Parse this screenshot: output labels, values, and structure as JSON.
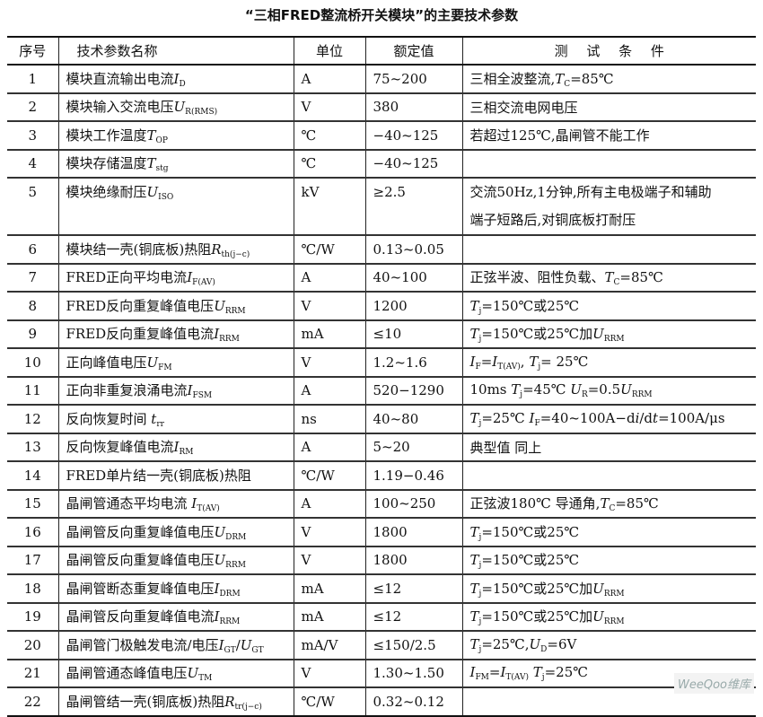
{
  "title": "“三相FRED整流桥开关模块”的主要技术参数",
  "headers": [
    "序号",
    "技术参数名称",
    "单位",
    "额定值",
    "测 试 条 件"
  ],
  "rows": [
    {
      "no": "1",
      "name": [
        "模块直流输出电流",
        {
          "i": "I"
        },
        {
          "s": "D"
        }
      ],
      "unit": "A",
      "value": "75~200",
      "cond": [
        "三相全波整流,",
        {
          "i": "T"
        },
        {
          "s": "C"
        },
        "=85℃"
      ]
    },
    {
      "no": "2",
      "name": [
        "模块输入交流电压",
        {
          "i": "U"
        },
        {
          "s": "R(RMS)"
        }
      ],
      "unit": "V",
      "value": "380",
      "cond": [
        "三相交流电网电压"
      ]
    },
    {
      "no": "3",
      "name": [
        "模块工作温度",
        {
          "i": "T"
        },
        {
          "s": "OP"
        }
      ],
      "unit": "℃",
      "value": "−40~125",
      "cond": [
        "若超过125℃,晶闸管不能工作"
      ]
    },
    {
      "no": "4",
      "name": [
        "模块存储温度",
        {
          "i": "T"
        },
        {
          "s": "stg"
        }
      ],
      "unit": "℃",
      "value": "−40~125",
      "cond": []
    },
    {
      "no": "5",
      "name": [
        "模块绝缘耐压",
        {
          "i": "U"
        },
        {
          "s": "ISO"
        }
      ],
      "unit": "kV",
      "value": "≥2.5",
      "cond": [
        "交流50Hz,1分钟,所有主电极端子和辅助",
        {
          "br": "端子短路后,对铜底板打耐压"
        }
      ]
    },
    {
      "no": "6",
      "name": [
        "模块结一壳(铜底板)热阻",
        {
          "i": "R"
        },
        {
          "s": "th(j−c)"
        }
      ],
      "unit": "℃/W",
      "value": "0.13~0.05",
      "cond": []
    },
    {
      "no": "7",
      "name": [
        "FRED正向平均电流",
        {
          "i": "I"
        },
        {
          "s": "F(AV)"
        }
      ],
      "unit": "A",
      "value": "40~100",
      "cond": [
        "正弦半波、阻性负载、",
        {
          "i": "T"
        },
        {
          "s": "C"
        },
        "=85℃"
      ]
    },
    {
      "no": "8",
      "name": [
        "FRED反向重复峰值电压",
        {
          "i": "U"
        },
        {
          "s": "RRM"
        }
      ],
      "unit": "V",
      "value": "1200",
      "cond": [
        {
          "i": "T"
        },
        {
          "s": "j"
        },
        "=150℃或25℃"
      ]
    },
    {
      "no": "9",
      "name": [
        "FRED反向重复峰值电流",
        {
          "i": "I"
        },
        {
          "s": "RRM"
        }
      ],
      "unit": "mA",
      "value": "≤10",
      "cond": [
        {
          "i": "T"
        },
        {
          "s": "j"
        },
        "=150℃或25℃加",
        {
          "i": "U"
        },
        {
          "s": "RRM"
        }
      ]
    },
    {
      "no": "10",
      "name": [
        "正向峰值电压",
        {
          "i": "U"
        },
        {
          "s": "FM"
        }
      ],
      "unit": "V",
      "value": "1.2~1.6",
      "cond": [
        {
          "i": "I"
        },
        {
          "s": "F"
        },
        "=",
        {
          "i": "I"
        },
        {
          "s": "T(AV)"
        },
        ", ",
        {
          "i": "T"
        },
        {
          "s": "j"
        },
        "= 25℃"
      ]
    },
    {
      "no": "11",
      "name": [
        "正向非重复浪涌电流",
        {
          "i": "I"
        },
        {
          "s": "FSM"
        }
      ],
      "unit": "A",
      "value": "520−1290",
      "cond": [
        "10ms ",
        {
          "i": "T"
        },
        {
          "s": "j"
        },
        "=45℃    ",
        {
          "i": "U"
        },
        {
          "s": "R"
        },
        "=0.5",
        {
          "i": "U"
        },
        {
          "s": "RRM"
        }
      ]
    },
    {
      "no": "12",
      "name": [
        "反向恢复时间 ",
        {
          "i": "t"
        },
        {
          "s": "rr"
        }
      ],
      "unit": "ns",
      "value": "40~80",
      "cond": [
        {
          "i": "T"
        },
        {
          "s": "j"
        },
        "=25℃ ",
        {
          "i": "I"
        },
        {
          "s": "F"
        },
        "=40~100A−d",
        {
          "i": "i"
        },
        "/d",
        {
          "i": "t"
        },
        "=100A/μs"
      ]
    },
    {
      "no": "13",
      "name": [
        "反向恢复峰值电流",
        {
          "i": "I"
        },
        {
          "s": "RM"
        }
      ],
      "unit": "A",
      "value": "5~20",
      "cond": [
        "典型值  同上"
      ]
    },
    {
      "no": "14",
      "name": [
        "FRED单片结一壳(铜底板)热阻"
      ],
      "unit": "℃/W",
      "value": "1.19−0.46",
      "cond": []
    },
    {
      "no": "15",
      "name": [
        "晶闸管通态平均电流 ",
        {
          "i": "I"
        },
        {
          "s": "T(AV)"
        }
      ],
      "unit": "A",
      "value": "100~250",
      "cond": [
        "正弦波180℃  导通角,",
        {
          "i": "T"
        },
        {
          "s": "C"
        },
        "=85℃"
      ]
    },
    {
      "no": "16",
      "name": [
        "晶闸管反向重复峰值电压",
        {
          "i": "U"
        },
        {
          "s": "DRM"
        }
      ],
      "unit": "V",
      "value": "1800",
      "cond": [
        {
          "i": "T"
        },
        {
          "s": "j"
        },
        "=150℃或25℃"
      ]
    },
    {
      "no": "17",
      "name": [
        "晶闸管反向重复峰值电压",
        {
          "i": "U"
        },
        {
          "s": "RRM"
        }
      ],
      "unit": "V",
      "value": "1800",
      "cond": [
        {
          "i": "T"
        },
        {
          "s": "j"
        },
        "=150℃或25℃"
      ]
    },
    {
      "no": "18",
      "name": [
        "晶闸管断态重复峰值电压",
        {
          "i": "I"
        },
        {
          "s": "DRM"
        }
      ],
      "unit": "mA",
      "value": "≤12",
      "cond": [
        {
          "i": "T"
        },
        {
          "s": "j"
        },
        "=150℃或25℃加",
        {
          "i": "U"
        },
        {
          "s": "RRM"
        }
      ]
    },
    {
      "no": "19",
      "name": [
        "晶闸管反向重复峰值电流",
        {
          "i": "I"
        },
        {
          "s": "RRM"
        }
      ],
      "unit": "mA",
      "value": "≤12",
      "cond": [
        {
          "i": "T"
        },
        {
          "s": "j"
        },
        "=150℃或25℃加",
        {
          "i": "U"
        },
        {
          "s": "RRM"
        }
      ]
    },
    {
      "no": "20",
      "name": [
        "晶闸管门极触发电流/电压",
        {
          "i": "I"
        },
        {
          "s": "GT"
        },
        "/",
        {
          "i": "U"
        },
        {
          "s": "GT"
        }
      ],
      "unit": "mA/V",
      "value": "≤150/2.5",
      "cond": [
        {
          "i": "T"
        },
        {
          "s": "j"
        },
        "=25℃,",
        {
          "i": "U"
        },
        {
          "s": "D"
        },
        "=6V"
      ]
    },
    {
      "no": "21",
      "name": [
        "晶闸管通态峰值电压",
        {
          "i": "U"
        },
        {
          "s": "TM"
        }
      ],
      "unit": "V",
      "value": "1.30~1.50",
      "cond": [
        {
          "i": "I"
        },
        {
          "s": "FM"
        },
        "=",
        {
          "i": "I"
        },
        {
          "s": "T(AV)"
        },
        " ",
        {
          "i": "T"
        },
        {
          "s": "j"
        },
        "=25℃"
      ]
    },
    {
      "no": "22",
      "name": [
        "晶闸管结一壳(铜底板)热阻",
        {
          "i": "R"
        },
        {
          "s": "tr(j−c)"
        }
      ],
      "unit": "℃/W",
      "value": "0.32~0.12",
      "cond": []
    }
  ],
  "watermark": "WeeQoo维库"
}
